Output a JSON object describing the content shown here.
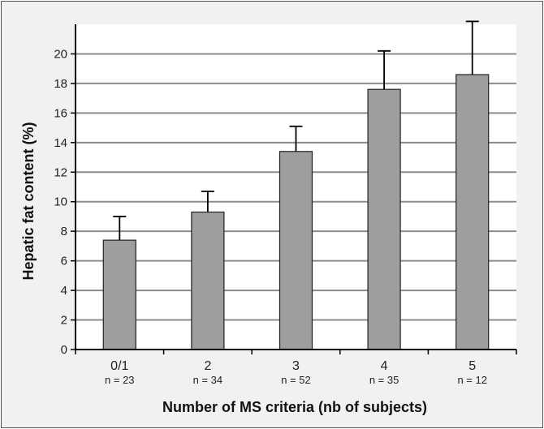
{
  "colors": {
    "background": "#f1f1f1",
    "plot_background": "#ffffff",
    "bar_fill": "#9e9e9e",
    "bar_stroke": "#222222",
    "grid": "#8c8c8c",
    "axis": "#000000"
  },
  "chart_data": {
    "type": "bar",
    "title": "",
    "xlabel": "Number of MS criteria (nb of subjects)",
    "ylabel": "Hepatic fat content (%)",
    "ylim": [
      0,
      22
    ],
    "yticks": [
      0,
      2,
      4,
      6,
      8,
      10,
      12,
      14,
      16,
      18,
      20
    ],
    "grid": true,
    "categories": [
      "0/1",
      "2",
      "3",
      "4",
      "5"
    ],
    "sample_sizes": [
      "n = 23",
      "n = 34",
      "n = 52",
      "n = 35",
      "n = 12"
    ],
    "values": [
      7.4,
      9.3,
      13.4,
      17.6,
      18.6
    ],
    "error_upper": [
      1.6,
      1.4,
      1.7,
      2.6,
      3.6
    ]
  }
}
